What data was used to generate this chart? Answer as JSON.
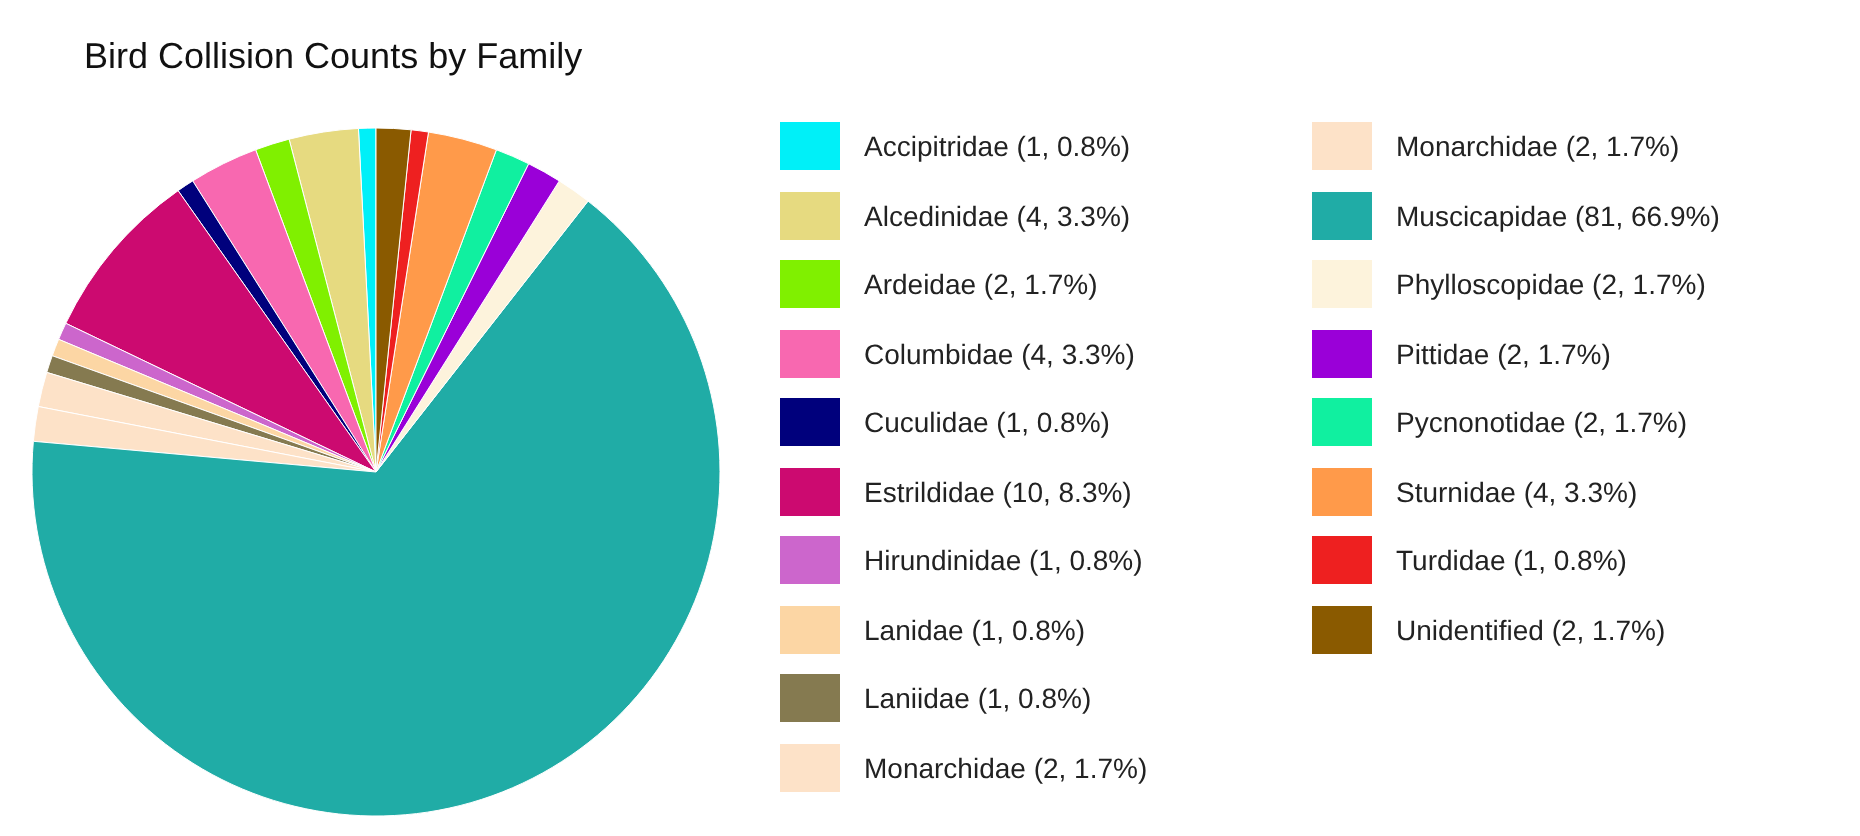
{
  "chart_data": {
    "type": "pie",
    "title": "Bird Collision Counts by Family",
    "legend": "right",
    "categories": [
      "Accipitridae (1, 0.8%)",
      "Alcedinidae (4, 3.3%)",
      "Ardeidae (2, 1.7%)",
      "Columbidae (4, 3.3%)",
      "Cuculidae (1, 0.8%)",
      "Estrildidae (10, 8.3%)",
      "Hirundinidae (1, 0.8%)",
      "Lanidae (1, 0.8%)",
      "Laniidae (1, 0.8%)",
      "Monarchidae (2, 1.7%)",
      "Monarchidae (2, 1.7%)",
      "Muscicapidae (81, 66.9%)",
      "Phylloscopidae (2, 1.7%)",
      "Pittidae (2, 1.7%)",
      "Pycnonotidae (2, 1.7%)",
      "Sturnidae (4, 3.3%)",
      "Turdidae (1, 0.8%)",
      "Unidentified (2, 1.7%)"
    ],
    "values": [
      1,
      4,
      2,
      4,
      1,
      10,
      1,
      1,
      1,
      2,
      2,
      81,
      2,
      2,
      2,
      4,
      1,
      2
    ],
    "colors": [
      "#00f0f8",
      "#e6da80",
      "#80f000",
      "#f868b0",
      "#00007c",
      "#cc0a70",
      "#cc66cc",
      "#fcd6a4",
      "#857a50",
      "#fde2c8",
      "#fde2c8",
      "#20aca6",
      "#fdf3dc",
      "#9a00d8",
      "#10f0a0",
      "#ff9a4a",
      "#ee2020",
      "#8a5a00"
    ]
  }
}
